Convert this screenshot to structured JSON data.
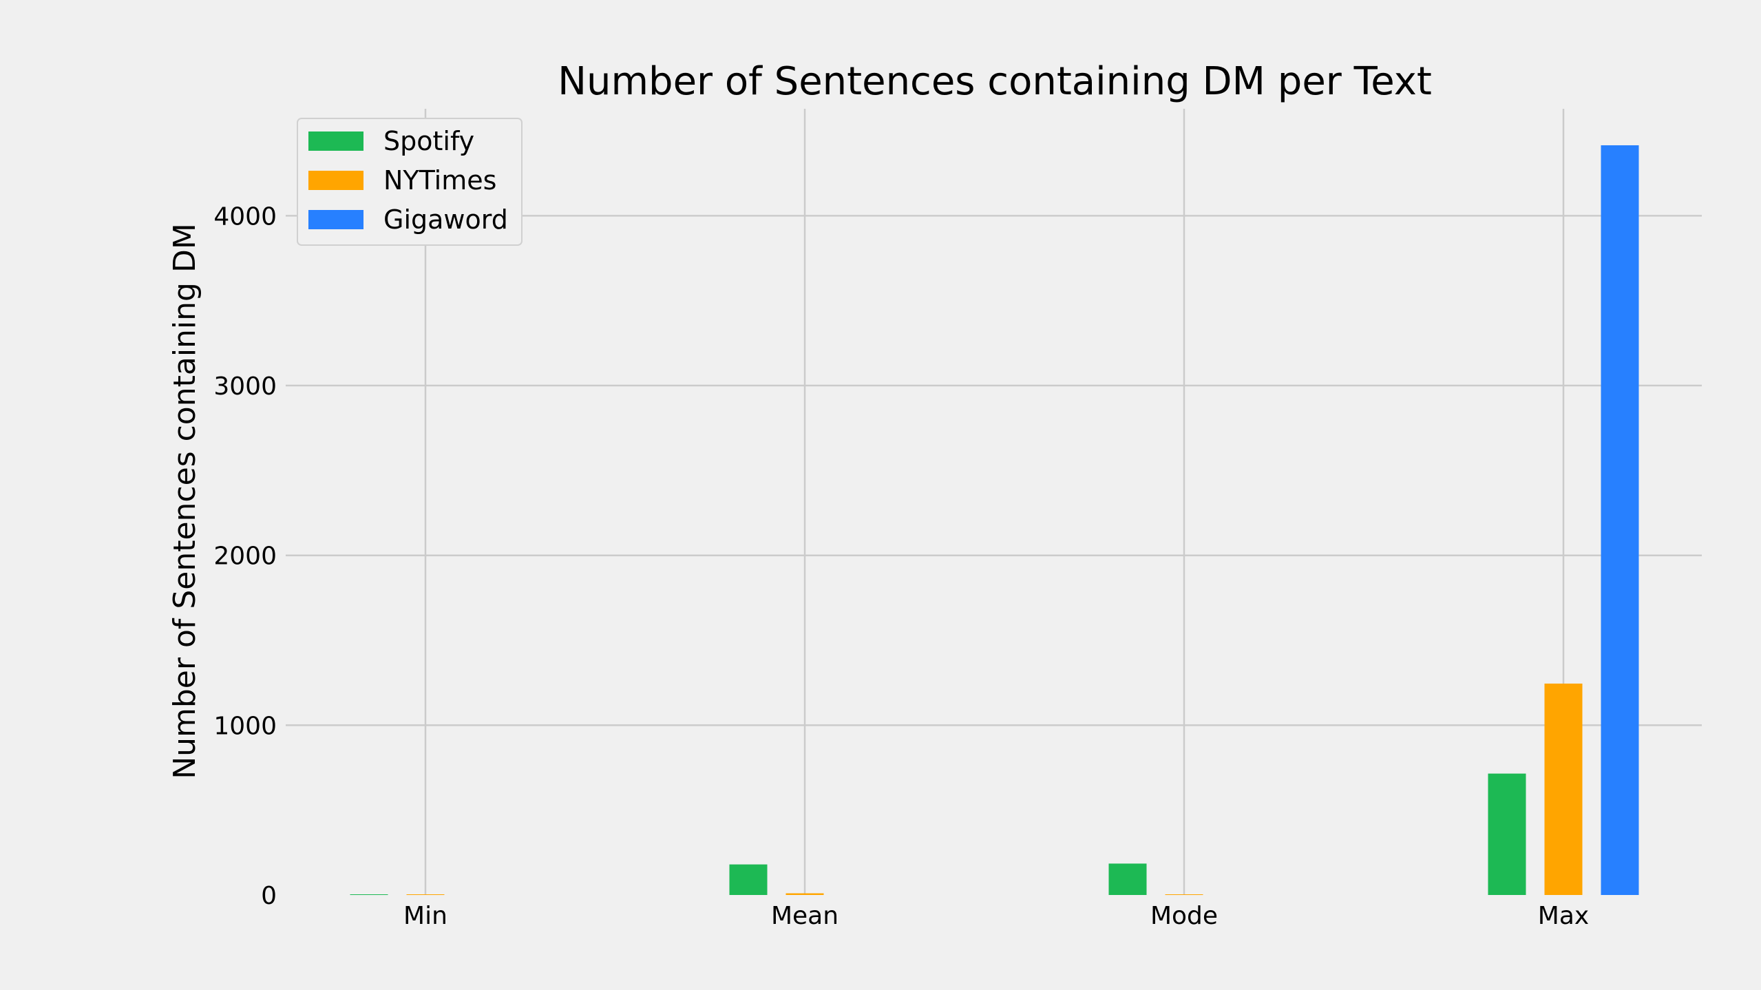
{
  "chart_data": {
    "type": "bar",
    "title": "Number of Sentences containing DM per Text",
    "ylabel": "Number of Sentences containing DM",
    "xlabel": "",
    "categories": [
      "Min",
      "Mean",
      "Mode",
      "Max"
    ],
    "series": [
      {
        "name": "Spotify",
        "color": "#1db954",
        "values": [
          1,
          180,
          185,
          715
        ]
      },
      {
        "name": "NYTimes",
        "color": "#ffa500",
        "values": [
          1,
          10,
          1,
          1245
        ]
      },
      {
        "name": "Gigaword",
        "color": "#2780ff",
        "values": [
          0,
          0,
          0,
          4415
        ]
      }
    ],
    "ylim": [
      0,
      4630
    ],
    "yticks": [
      0,
      1000,
      2000,
      3000,
      4000
    ],
    "grid": true,
    "legend_position": "top-left"
  }
}
